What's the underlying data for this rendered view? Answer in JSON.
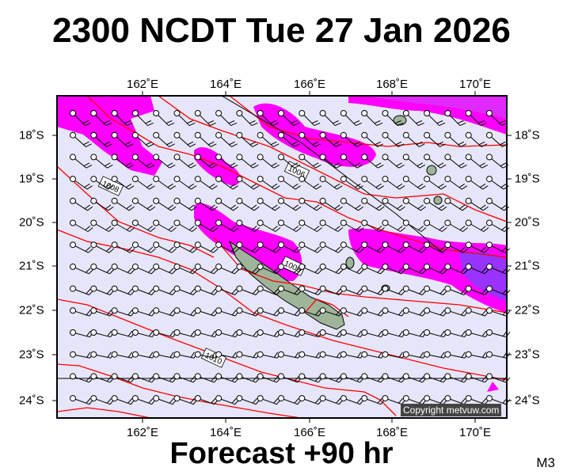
{
  "title": "2300 NCDT Tue 27 Jan 2026",
  "footer": "Forecast +90 hr",
  "model_code": "M3",
  "copyright": "Copyright metvuw.com",
  "lon_labels": [
    "162˚E",
    "164˚E",
    "166˚E",
    "168˚E",
    "170˚E"
  ],
  "lat_labels": [
    "18˚S",
    "19˚S",
    "20˚S",
    "21˚S",
    "22˚S",
    "23˚S",
    "24˚S"
  ],
  "isobar_labels": [
    "1006",
    "1008",
    "1009",
    "1010"
  ],
  "colors": {
    "background": "#e6e6fa",
    "rain": "#ff00ff",
    "rain_heavy": "#9933ff",
    "isobar": "#ff0000",
    "land": "#9fb59a"
  }
}
